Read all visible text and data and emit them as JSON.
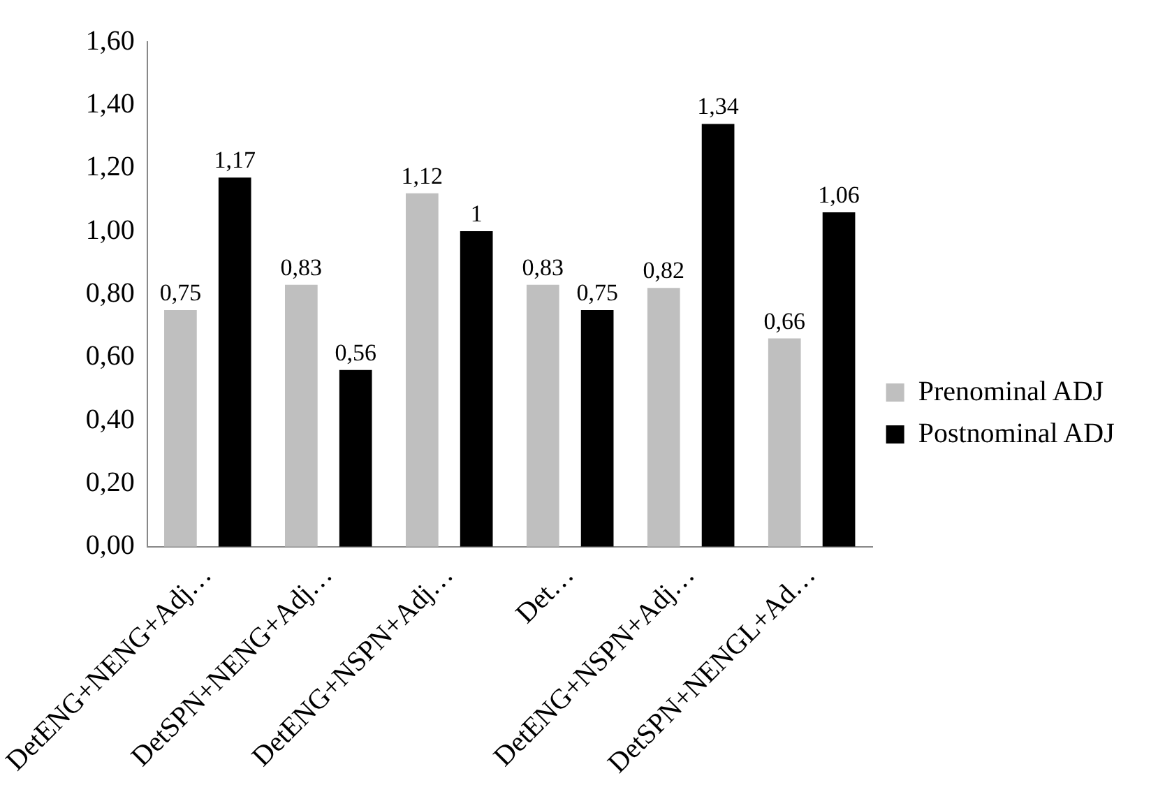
{
  "chart_data": {
    "type": "bar",
    "categories": [
      "DetENG+NENG+Adj…",
      "DetSPN+NENG+Adj…",
      "DetENG+NSPN+Adj…",
      "Det…",
      "DetENG+NSPN+Adj…",
      "DetSPN+NENGL+Ad…"
    ],
    "series": [
      {
        "name": "Prenominal ADJ",
        "color": "#bfbfbf",
        "values": [
          0.75,
          0.83,
          1.12,
          0.83,
          0.82,
          0.66
        ],
        "value_labels": [
          "0,75",
          "0,83",
          "1,12",
          "0,83",
          "0,82",
          "0,66"
        ]
      },
      {
        "name": "Postnominal ADJ",
        "color": "#000000",
        "values": [
          1.17,
          0.56,
          1,
          0.75,
          1.34,
          1.06
        ],
        "value_labels": [
          "1,17",
          "0,56",
          "1",
          "0,75",
          "1,34",
          "1,06"
        ]
      }
    ],
    "ylim": [
      0,
      1.6
    ],
    "yticks": [
      {
        "value": 0,
        "label": "0,00"
      },
      {
        "value": 0.2,
        "label": "0,20"
      },
      {
        "value": 0.4,
        "label": "0,40"
      },
      {
        "value": 0.6,
        "label": "0,60"
      },
      {
        "value": 0.8,
        "label": "0,80"
      },
      {
        "value": 1,
        "label": "1,00"
      },
      {
        "value": 1.2,
        "label": "1,20"
      },
      {
        "value": 1.4,
        "label": "1,40"
      },
      {
        "value": 1.6,
        "label": "1,60"
      }
    ],
    "grid": false,
    "legend": "right"
  }
}
